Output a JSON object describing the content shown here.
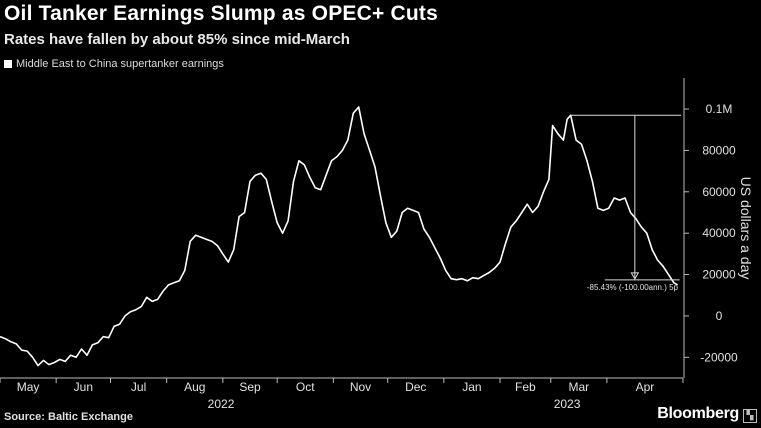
{
  "chart_data": {
    "type": "line",
    "title": "Oil Tanker Earnings Slump as OPEC+ Cuts",
    "subtitle": "Rates have fallen by about 85% since mid-March",
    "ylabel": "US dollars a day",
    "source": "Source: Baltic Exchange",
    "brand": "Bloomberg",
    "legend": {
      "position": "top-left",
      "entries": [
        "Middle East to China supertanker earnings"
      ]
    },
    "grid": false,
    "xlim": [
      "2022-05-01",
      "2023-05-13"
    ],
    "ylim": [
      -30000,
      115000
    ],
    "y_ticks": [
      {
        "value": 100000,
        "label": "0.1M"
      },
      {
        "value": 80000,
        "label": "80000"
      },
      {
        "value": 60000,
        "label": "60000"
      },
      {
        "value": 40000,
        "label": "40000"
      },
      {
        "value": 20000,
        "label": "20000"
      },
      {
        "value": 0,
        "label": "0"
      },
      {
        "value": -20000,
        "label": "-20000"
      }
    ],
    "x_ticks": [
      {
        "date": "2022-05-01",
        "label": "May"
      },
      {
        "date": "2022-06-01",
        "label": "Jun"
      },
      {
        "date": "2022-07-01",
        "label": "Jul"
      },
      {
        "date": "2022-08-01",
        "label": "Aug"
      },
      {
        "date": "2022-09-01",
        "label": "Sep"
      },
      {
        "date": "2022-10-01",
        "label": "Oct"
      },
      {
        "date": "2022-11-01",
        "label": "Nov"
      },
      {
        "date": "2022-12-01",
        "label": "Dec"
      },
      {
        "date": "2023-01-01",
        "label": "Jan"
      },
      {
        "date": "2023-02-01",
        "label": "Feb"
      },
      {
        "date": "2023-03-01",
        "label": "Mar"
      },
      {
        "date": "2023-04-01",
        "label": "Apr"
      }
    ],
    "year_labels": [
      {
        "date": "2022-08-31",
        "label": "2022"
      },
      {
        "date": "2023-03-10",
        "label": "2023"
      }
    ],
    "annotation": {
      "text": "-85.43% (-100.00ann.) 5p",
      "from": {
        "date": "2023-03-12",
        "value": 97000
      },
      "to": {
        "date": "2023-05-10",
        "value": 15000
      }
    },
    "series": [
      {
        "name": "Middle East to China supertanker earnings",
        "color": "#ffffff",
        "points": [
          [
            "2022-05-01",
            -10000
          ],
          [
            "2022-05-04",
            -11000
          ],
          [
            "2022-05-07",
            -12500
          ],
          [
            "2022-05-10",
            -13500
          ],
          [
            "2022-05-13",
            -16500
          ],
          [
            "2022-05-16",
            -17000
          ],
          [
            "2022-05-19",
            -20000
          ],
          [
            "2022-05-22",
            -24000
          ],
          [
            "2022-05-25",
            -21500
          ],
          [
            "2022-05-28",
            -23500
          ],
          [
            "2022-05-31",
            -22500
          ],
          [
            "2022-06-03",
            -21000
          ],
          [
            "2022-06-06",
            -22000
          ],
          [
            "2022-06-09",
            -19000
          ],
          [
            "2022-06-12",
            -20000
          ],
          [
            "2022-06-15",
            -16000
          ],
          [
            "2022-06-18",
            -19000
          ],
          [
            "2022-06-21",
            -14000
          ],
          [
            "2022-06-24",
            -13000
          ],
          [
            "2022-06-27",
            -10000
          ],
          [
            "2022-06-30",
            -10500
          ],
          [
            "2022-07-03",
            -5000
          ],
          [
            "2022-07-06",
            -4000
          ],
          [
            "2022-07-09",
            0
          ],
          [
            "2022-07-12",
            2000
          ],
          [
            "2022-07-15",
            3000
          ],
          [
            "2022-07-18",
            4500
          ],
          [
            "2022-07-21",
            9000
          ],
          [
            "2022-07-24",
            7000
          ],
          [
            "2022-07-27",
            8000
          ],
          [
            "2022-07-30",
            12000
          ],
          [
            "2022-08-02",
            15000
          ],
          [
            "2022-08-05",
            16000
          ],
          [
            "2022-08-08",
            17000
          ],
          [
            "2022-08-11",
            22000
          ],
          [
            "2022-08-14",
            36000
          ],
          [
            "2022-08-17",
            39000
          ],
          [
            "2022-08-20",
            38000
          ],
          [
            "2022-08-23",
            37000
          ],
          [
            "2022-08-26",
            36000
          ],
          [
            "2022-08-29",
            34000
          ],
          [
            "2022-09-01",
            30000
          ],
          [
            "2022-09-04",
            26000
          ],
          [
            "2022-09-07",
            32000
          ],
          [
            "2022-09-10",
            48000
          ],
          [
            "2022-09-13",
            50000
          ],
          [
            "2022-09-16",
            65000
          ],
          [
            "2022-09-19",
            68000
          ],
          [
            "2022-09-22",
            69000
          ],
          [
            "2022-09-25",
            66000
          ],
          [
            "2022-09-28",
            55000
          ],
          [
            "2022-10-01",
            45000
          ],
          [
            "2022-10-04",
            40000
          ],
          [
            "2022-10-07",
            46000
          ],
          [
            "2022-10-10",
            65000
          ],
          [
            "2022-10-13",
            75000
          ],
          [
            "2022-10-16",
            73000
          ],
          [
            "2022-10-19",
            67000
          ],
          [
            "2022-10-22",
            62000
          ],
          [
            "2022-10-25",
            61000
          ],
          [
            "2022-10-28",
            68000
          ],
          [
            "2022-10-31",
            75000
          ],
          [
            "2022-11-03",
            77000
          ],
          [
            "2022-11-06",
            80000
          ],
          [
            "2022-11-09",
            85000
          ],
          [
            "2022-11-12",
            98000
          ],
          [
            "2022-11-15",
            101000
          ],
          [
            "2022-11-18",
            88000
          ],
          [
            "2022-11-21",
            80000
          ],
          [
            "2022-11-24",
            72000
          ],
          [
            "2022-11-27",
            58000
          ],
          [
            "2022-11-30",
            45000
          ],
          [
            "2022-12-03",
            38000
          ],
          [
            "2022-12-06",
            41000
          ],
          [
            "2022-12-09",
            50000
          ],
          [
            "2022-12-12",
            52000
          ],
          [
            "2022-12-15",
            51000
          ],
          [
            "2022-12-18",
            50000
          ],
          [
            "2022-12-21",
            42000
          ],
          [
            "2022-12-24",
            38000
          ],
          [
            "2022-12-27",
            33000
          ],
          [
            "2022-12-30",
            28000
          ],
          [
            "2023-01-02",
            22000
          ],
          [
            "2023-01-05",
            18000
          ],
          [
            "2023-01-08",
            17500
          ],
          [
            "2023-01-11",
            18000
          ],
          [
            "2023-01-14",
            17000
          ],
          [
            "2023-01-17",
            18500
          ],
          [
            "2023-01-20",
            18000
          ],
          [
            "2023-01-23",
            19500
          ],
          [
            "2023-01-26",
            21000
          ],
          [
            "2023-01-29",
            23000
          ],
          [
            "2023-02-01",
            26000
          ],
          [
            "2023-02-04",
            35000
          ],
          [
            "2023-02-07",
            43000
          ],
          [
            "2023-02-10",
            46000
          ],
          [
            "2023-02-13",
            50000
          ],
          [
            "2023-02-16",
            54000
          ],
          [
            "2023-02-19",
            50000
          ],
          [
            "2023-02-22",
            53000
          ],
          [
            "2023-02-25",
            60000
          ],
          [
            "2023-02-28",
            66000
          ],
          [
            "2023-03-02",
            92000
          ],
          [
            "2023-03-05",
            88000
          ],
          [
            "2023-03-08",
            85000
          ],
          [
            "2023-03-10",
            95000
          ],
          [
            "2023-03-12",
            97000
          ],
          [
            "2023-03-15",
            85000
          ],
          [
            "2023-03-18",
            83000
          ],
          [
            "2023-03-21",
            75000
          ],
          [
            "2023-03-24",
            65000
          ],
          [
            "2023-03-27",
            52000
          ],
          [
            "2023-03-30",
            51000
          ],
          [
            "2023-04-02",
            52000
          ],
          [
            "2023-04-05",
            57000
          ],
          [
            "2023-04-08",
            56000
          ],
          [
            "2023-04-11",
            57000
          ],
          [
            "2023-04-14",
            50000
          ],
          [
            "2023-04-17",
            47000
          ],
          [
            "2023-04-20",
            43000
          ],
          [
            "2023-04-23",
            40000
          ],
          [
            "2023-04-26",
            32000
          ],
          [
            "2023-04-29",
            27000
          ],
          [
            "2023-05-02",
            24000
          ],
          [
            "2023-05-05",
            20000
          ],
          [
            "2023-05-08",
            16000
          ],
          [
            "2023-05-10",
            15000
          ]
        ]
      }
    ]
  }
}
